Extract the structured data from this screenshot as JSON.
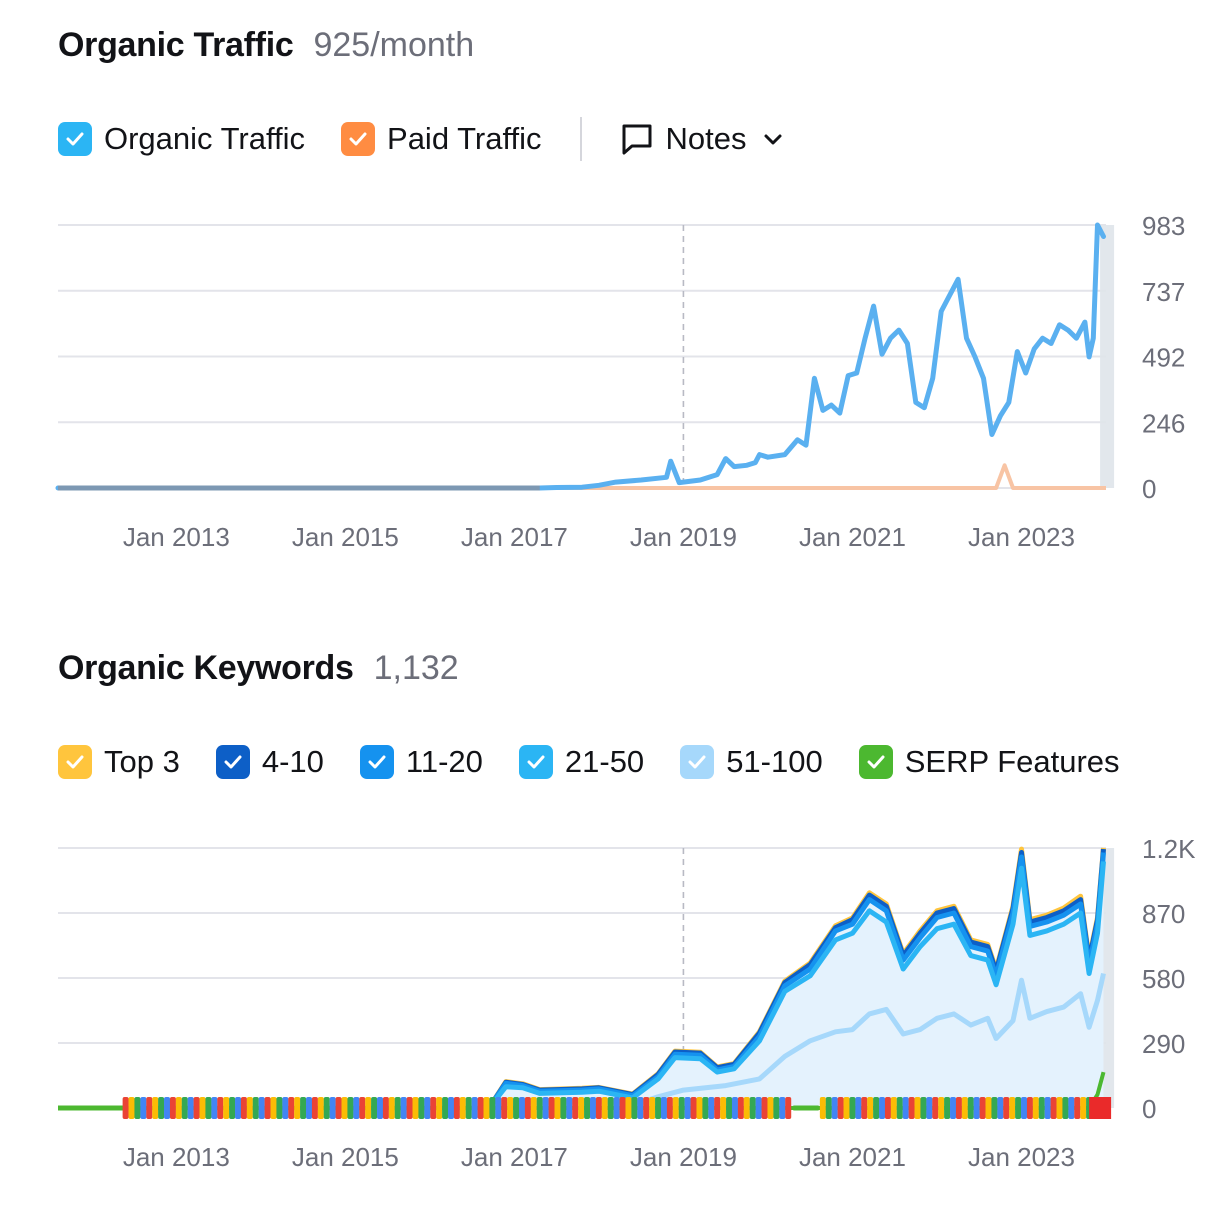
{
  "traffic": {
    "title": "Organic Traffic",
    "value": "925/month",
    "legend": [
      {
        "label": "Organic Traffic",
        "color": "#2bb5f4",
        "checked": true
      },
      {
        "label": "Paid Traffic",
        "color": "#ff8c42",
        "checked": true
      }
    ],
    "notes_label": "Notes"
  },
  "keywords": {
    "title": "Organic Keywords",
    "value": "1,132",
    "legend": [
      {
        "label": "Top 3",
        "color": "#ffc53d",
        "checked": true
      },
      {
        "label": "4-10",
        "color": "#0d5fc7",
        "checked": true
      },
      {
        "label": "11-20",
        "color": "#1592ef",
        "checked": true
      },
      {
        "label": "21-50",
        "color": "#2bb5f4",
        "checked": true
      },
      {
        "label": "51-100",
        "color": "#a6d8fb",
        "checked": true
      },
      {
        "label": "SERP Features",
        "color": "#4cb830",
        "checked": true
      }
    ]
  },
  "chart_data": [
    {
      "type": "line",
      "title": "Organic Traffic",
      "x_ticks": [
        "Jan 2013",
        "Jan 2015",
        "Jan 2017",
        "Jan 2019",
        "Jan 2021",
        "Jan 2023"
      ],
      "y_ticks": [
        "983",
        "737",
        "492",
        "246",
        "0"
      ],
      "ylim": [
        0,
        983
      ],
      "xlim": [
        2011.6,
        2024.0
      ],
      "grid": true,
      "series": [
        {
          "name": "Organic Traffic",
          "color": "#5ab0f0",
          "points": [
            [
              2011.6,
              0
            ],
            [
              2017.3,
              0
            ],
            [
              2017.5,
              2
            ],
            [
              2017.8,
              3
            ],
            [
              2018.0,
              10
            ],
            [
              2018.2,
              22
            ],
            [
              2018.5,
              30
            ],
            [
              2018.8,
              40
            ],
            [
              2018.85,
              100
            ],
            [
              2018.95,
              20
            ],
            [
              2019.2,
              30
            ],
            [
              2019.4,
              50
            ],
            [
              2019.5,
              110
            ],
            [
              2019.6,
              80
            ],
            [
              2019.75,
              85
            ],
            [
              2019.85,
              95
            ],
            [
              2019.9,
              125
            ],
            [
              2020.0,
              115
            ],
            [
              2020.2,
              125
            ],
            [
              2020.35,
              180
            ],
            [
              2020.45,
              160
            ],
            [
              2020.55,
              410
            ],
            [
              2020.65,
              290
            ],
            [
              2020.75,
              310
            ],
            [
              2020.85,
              280
            ],
            [
              2020.95,
              420
            ],
            [
              2021.05,
              430
            ],
            [
              2021.15,
              560
            ],
            [
              2021.25,
              680
            ],
            [
              2021.35,
              500
            ],
            [
              2021.45,
              560
            ],
            [
              2021.55,
              590
            ],
            [
              2021.65,
              540
            ],
            [
              2021.75,
              320
            ],
            [
              2021.85,
              300
            ],
            [
              2021.95,
              410
            ],
            [
              2022.05,
              660
            ],
            [
              2022.15,
              720
            ],
            [
              2022.25,
              780
            ],
            [
              2022.35,
              560
            ],
            [
              2022.45,
              490
            ],
            [
              2022.55,
              410
            ],
            [
              2022.65,
              200
            ],
            [
              2022.75,
              270
            ],
            [
              2022.85,
              320
            ],
            [
              2022.95,
              510
            ],
            [
              2023.05,
              430
            ],
            [
              2023.15,
              520
            ],
            [
              2023.25,
              560
            ],
            [
              2023.35,
              540
            ],
            [
              2023.45,
              610
            ],
            [
              2023.55,
              590
            ],
            [
              2023.65,
              560
            ],
            [
              2023.75,
              620
            ],
            [
              2023.8,
              490
            ],
            [
              2023.85,
              560
            ],
            [
              2023.9,
              983
            ],
            [
              2023.97,
              940
            ]
          ]
        },
        {
          "name": "Paid Traffic",
          "color": "#f8c4a4",
          "points": [
            [
              2011.6,
              0
            ],
            [
              2022.7,
              0
            ],
            [
              2022.8,
              85
            ],
            [
              2022.9,
              0
            ],
            [
              2024.0,
              0
            ]
          ]
        }
      ]
    },
    {
      "type": "area",
      "title": "Organic Keywords",
      "x_ticks": [
        "Jan 2013",
        "Jan 2015",
        "Jan 2017",
        "Jan 2019",
        "Jan 2021",
        "Jan 2023"
      ],
      "y_ticks": [
        "1.2K",
        "870",
        "580",
        "290",
        "0"
      ],
      "ylim": [
        0,
        1160
      ],
      "xlim": [
        2011.6,
        2024.0
      ],
      "grid": true,
      "series": [
        {
          "name": "51-100",
          "color": "#a6d8fb",
          "points": [
            [
              2011.6,
              0
            ],
            [
              2016.7,
              0
            ],
            [
              2017.0,
              20
            ],
            [
              2017.4,
              25
            ],
            [
              2017.8,
              30
            ],
            [
              2018.5,
              25
            ],
            [
              2018.7,
              50
            ],
            [
              2019.0,
              80
            ],
            [
              2019.5,
              100
            ],
            [
              2019.9,
              130
            ],
            [
              2020.2,
              230
            ],
            [
              2020.5,
              300
            ],
            [
              2020.8,
              340
            ],
            [
              2021.0,
              350
            ],
            [
              2021.2,
              420
            ],
            [
              2021.4,
              440
            ],
            [
              2021.6,
              330
            ],
            [
              2021.8,
              350
            ],
            [
              2022.0,
              400
            ],
            [
              2022.2,
              420
            ],
            [
              2022.4,
              370
            ],
            [
              2022.6,
              400
            ],
            [
              2022.7,
              310
            ],
            [
              2022.9,
              390
            ],
            [
              2023.0,
              570
            ],
            [
              2023.1,
              400
            ],
            [
              2023.3,
              430
            ],
            [
              2023.5,
              450
            ],
            [
              2023.7,
              510
            ],
            [
              2023.8,
              360
            ],
            [
              2023.9,
              480
            ],
            [
              2023.97,
              600
            ]
          ]
        },
        {
          "name": "21-50",
          "color": "#2bb5f4",
          "points": [
            [
              2011.6,
              0
            ],
            [
              2016.7,
              0
            ],
            [
              2016.9,
              95
            ],
            [
              2017.1,
              90
            ],
            [
              2017.3,
              65
            ],
            [
              2017.8,
              70
            ],
            [
              2018.0,
              75
            ],
            [
              2018.4,
              45
            ],
            [
              2018.7,
              130
            ],
            [
              2018.9,
              225
            ],
            [
              2019.2,
              220
            ],
            [
              2019.4,
              160
            ],
            [
              2019.6,
              175
            ],
            [
              2019.9,
              300
            ],
            [
              2020.2,
              520
            ],
            [
              2020.5,
              590
            ],
            [
              2020.8,
              750
            ],
            [
              2021.0,
              780
            ],
            [
              2021.2,
              880
            ],
            [
              2021.4,
              830
            ],
            [
              2021.6,
              620
            ],
            [
              2021.8,
              720
            ],
            [
              2022.0,
              800
            ],
            [
              2022.2,
              820
            ],
            [
              2022.4,
              680
            ],
            [
              2022.6,
              660
            ],
            [
              2022.7,
              550
            ],
            [
              2022.9,
              820
            ],
            [
              2023.0,
              1070
            ],
            [
              2023.1,
              770
            ],
            [
              2023.3,
              790
            ],
            [
              2023.5,
              820
            ],
            [
              2023.7,
              870
            ],
            [
              2023.8,
              600
            ],
            [
              2023.9,
              780
            ],
            [
              2023.97,
              1100
            ]
          ]
        },
        {
          "name": "11-20",
          "color": "#1592ef",
          "points": [
            [
              2011.6,
              0
            ],
            [
              2016.7,
              0
            ],
            [
              2016.9,
              110
            ],
            [
              2017.1,
              100
            ],
            [
              2017.3,
              75
            ],
            [
              2017.8,
              80
            ],
            [
              2018.0,
              85
            ],
            [
              2018.4,
              55
            ],
            [
              2018.7,
              140
            ],
            [
              2018.9,
              240
            ],
            [
              2019.2,
              235
            ],
            [
              2019.4,
              170
            ],
            [
              2019.6,
              185
            ],
            [
              2019.9,
              320
            ],
            [
              2020.2,
              545
            ],
            [
              2020.5,
              620
            ],
            [
              2020.8,
              790
            ],
            [
              2021.0,
              820
            ],
            [
              2021.2,
              930
            ],
            [
              2021.4,
              880
            ],
            [
              2021.6,
              660
            ],
            [
              2021.8,
              760
            ],
            [
              2022.0,
              850
            ],
            [
              2022.2,
              870
            ],
            [
              2022.4,
              720
            ],
            [
              2022.6,
              700
            ],
            [
              2022.7,
              590
            ],
            [
              2022.9,
              870
            ],
            [
              2023.0,
              1120
            ],
            [
              2023.1,
              810
            ],
            [
              2023.3,
              830
            ],
            [
              2023.5,
              860
            ],
            [
              2023.7,
              910
            ],
            [
              2023.8,
              640
            ],
            [
              2023.9,
              820
            ],
            [
              2023.97,
              1140
            ]
          ]
        },
        {
          "name": "4-10",
          "color": "#0d5fc7",
          "points": [
            [
              2011.6,
              0
            ],
            [
              2016.7,
              0
            ],
            [
              2016.9,
              115
            ],
            [
              2017.1,
              105
            ],
            [
              2017.3,
              80
            ],
            [
              2017.8,
              85
            ],
            [
              2018.0,
              90
            ],
            [
              2018.4,
              60
            ],
            [
              2018.7,
              150
            ],
            [
              2018.9,
              250
            ],
            [
              2019.2,
              245
            ],
            [
              2019.4,
              180
            ],
            [
              2019.6,
              195
            ],
            [
              2019.9,
              335
            ],
            [
              2020.2,
              560
            ],
            [
              2020.5,
              640
            ],
            [
              2020.8,
              805
            ],
            [
              2021.0,
              840
            ],
            [
              2021.2,
              950
            ],
            [
              2021.4,
              900
            ],
            [
              2021.6,
              680
            ],
            [
              2021.8,
              780
            ],
            [
              2022.0,
              870
            ],
            [
              2022.2,
              890
            ],
            [
              2022.4,
              740
            ],
            [
              2022.6,
              720
            ],
            [
              2022.7,
              610
            ],
            [
              2022.9,
              890
            ],
            [
              2023.0,
              1140
            ],
            [
              2023.1,
              830
            ],
            [
              2023.3,
              850
            ],
            [
              2023.5,
              880
            ],
            [
              2023.7,
              930
            ],
            [
              2023.8,
              660
            ],
            [
              2023.9,
              840
            ],
            [
              2023.97,
              1155
            ]
          ]
        },
        {
          "name": "Top 3",
          "color": "#ffc53d",
          "points": [
            [
              2011.6,
              0
            ],
            [
              2016.7,
              0
            ],
            [
              2016.9,
              118
            ],
            [
              2017.1,
              108
            ],
            [
              2017.3,
              82
            ],
            [
              2017.8,
              88
            ],
            [
              2018.0,
              92
            ],
            [
              2018.4,
              62
            ],
            [
              2018.7,
              153
            ],
            [
              2018.9,
              254
            ],
            [
              2019.2,
              249
            ],
            [
              2019.4,
              183
            ],
            [
              2019.6,
              198
            ],
            [
              2019.9,
              340
            ],
            [
              2020.2,
              566
            ],
            [
              2020.5,
              647
            ],
            [
              2020.8,
              813
            ],
            [
              2021.0,
              848
            ],
            [
              2021.2,
              960
            ],
            [
              2021.4,
              910
            ],
            [
              2021.6,
              688
            ],
            [
              2021.8,
              790
            ],
            [
              2022.0,
              880
            ],
            [
              2022.2,
              900
            ],
            [
              2022.4,
              750
            ],
            [
              2022.6,
              730
            ],
            [
              2022.7,
              618
            ],
            [
              2022.9,
              900
            ],
            [
              2023.0,
              1155
            ],
            [
              2023.1,
              840
            ],
            [
              2023.3,
              860
            ],
            [
              2023.5,
              892
            ],
            [
              2023.7,
              945
            ],
            [
              2023.8,
              668
            ],
            [
              2023.9,
              850
            ],
            [
              2023.97,
              1160
            ]
          ]
        },
        {
          "name": "SERP Features",
          "color": "#4cb830",
          "points": [
            [
              2011.6,
              0
            ],
            [
              2023.8,
              0
            ],
            [
              2023.9,
              60
            ],
            [
              2023.97,
              160
            ]
          ]
        }
      ]
    }
  ]
}
